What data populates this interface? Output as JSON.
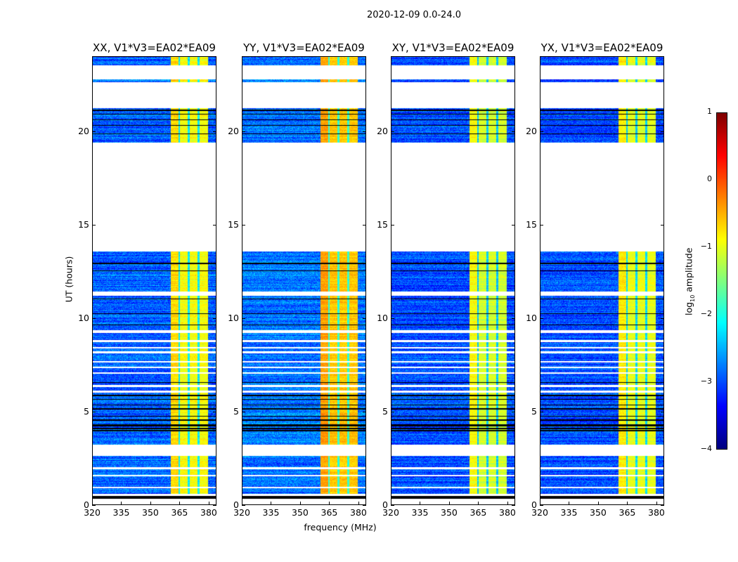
{
  "chart_data": {
    "type": "heatmap",
    "title": "2020-12-09 0.0-24.0",
    "xlabel": "frequency (MHz)",
    "ylabel": "UT (hours)",
    "xlim": [
      320,
      384
    ],
    "ylim": [
      0,
      24
    ],
    "xticks": [
      320,
      335,
      350,
      365,
      380
    ],
    "yticks": [
      0,
      5,
      10,
      15,
      20
    ],
    "panels": [
      {
        "title": "XX, V1*V3=EA02*EA09",
        "band_level": -0.9,
        "background_level": -2.9
      },
      {
        "title": "YY, V1*V3=EA02*EA09",
        "band_level": -0.6,
        "background_level": -2.8
      },
      {
        "title": "XY, V1*V3=EA02*EA09",
        "band_level": -1.1,
        "background_level": -3.0
      },
      {
        "title": "YX, V1*V3=EA02*EA09",
        "band_level": -1.0,
        "background_level": -3.0
      }
    ],
    "bright_band_mhz": [
      360.5,
      380
    ],
    "band_dark_channels_mhz": [
      365,
      370,
      375
    ],
    "flagged_hours": [
      [
        0,
        0.3
      ],
      [
        0.45,
        0.55
      ],
      [
        0.85,
        0.95
      ],
      [
        1.5,
        1.6
      ],
      [
        1.9,
        2.0
      ],
      [
        2.6,
        3.2
      ],
      [
        6.0,
        6.1
      ],
      [
        6.3,
        6.4
      ],
      [
        7.0,
        7.1
      ],
      [
        7.3,
        7.4
      ],
      [
        7.6,
        7.7
      ],
      [
        8.1,
        8.2
      ],
      [
        8.35,
        8.45
      ],
      [
        8.7,
        8.8
      ],
      [
        9.2,
        9.35
      ],
      [
        11.2,
        11.4
      ],
      [
        13.55,
        19.4
      ],
      [
        21.25,
        22.65
      ],
      [
        22.8,
        23.55
      ]
    ],
    "zero_hours": [
      [
        0.3,
        0.45
      ],
      [
        3.9,
        3.98
      ],
      [
        4.05,
        4.12
      ],
      [
        4.2,
        4.3
      ],
      [
        4.5,
        4.56
      ],
      [
        4.7,
        4.76
      ],
      [
        5.1,
        5.15
      ],
      [
        5.3,
        5.36
      ],
      [
        5.6,
        5.65
      ],
      [
        5.8,
        5.86
      ],
      [
        6.5,
        6.55
      ],
      [
        9.6,
        9.66
      ],
      [
        10.2,
        10.26
      ],
      [
        11.0,
        11.05
      ],
      [
        12.5,
        12.55
      ],
      [
        12.9,
        12.95
      ],
      [
        19.85,
        19.9
      ],
      [
        20.3,
        20.36
      ],
      [
        20.6,
        20.66
      ],
      [
        20.9,
        20.96
      ],
      [
        21.1,
        21.16
      ]
    ],
    "colorbar": {
      "label": "log10 amplitude",
      "range": [
        -4,
        1
      ],
      "ticks": [
        1,
        0,
        -1,
        -2,
        -3,
        -4
      ],
      "colormap": "jet"
    }
  },
  "colorbar_label_main": "log",
  "colorbar_label_sub": "10",
  "colorbar_label_rest": " amplitude"
}
